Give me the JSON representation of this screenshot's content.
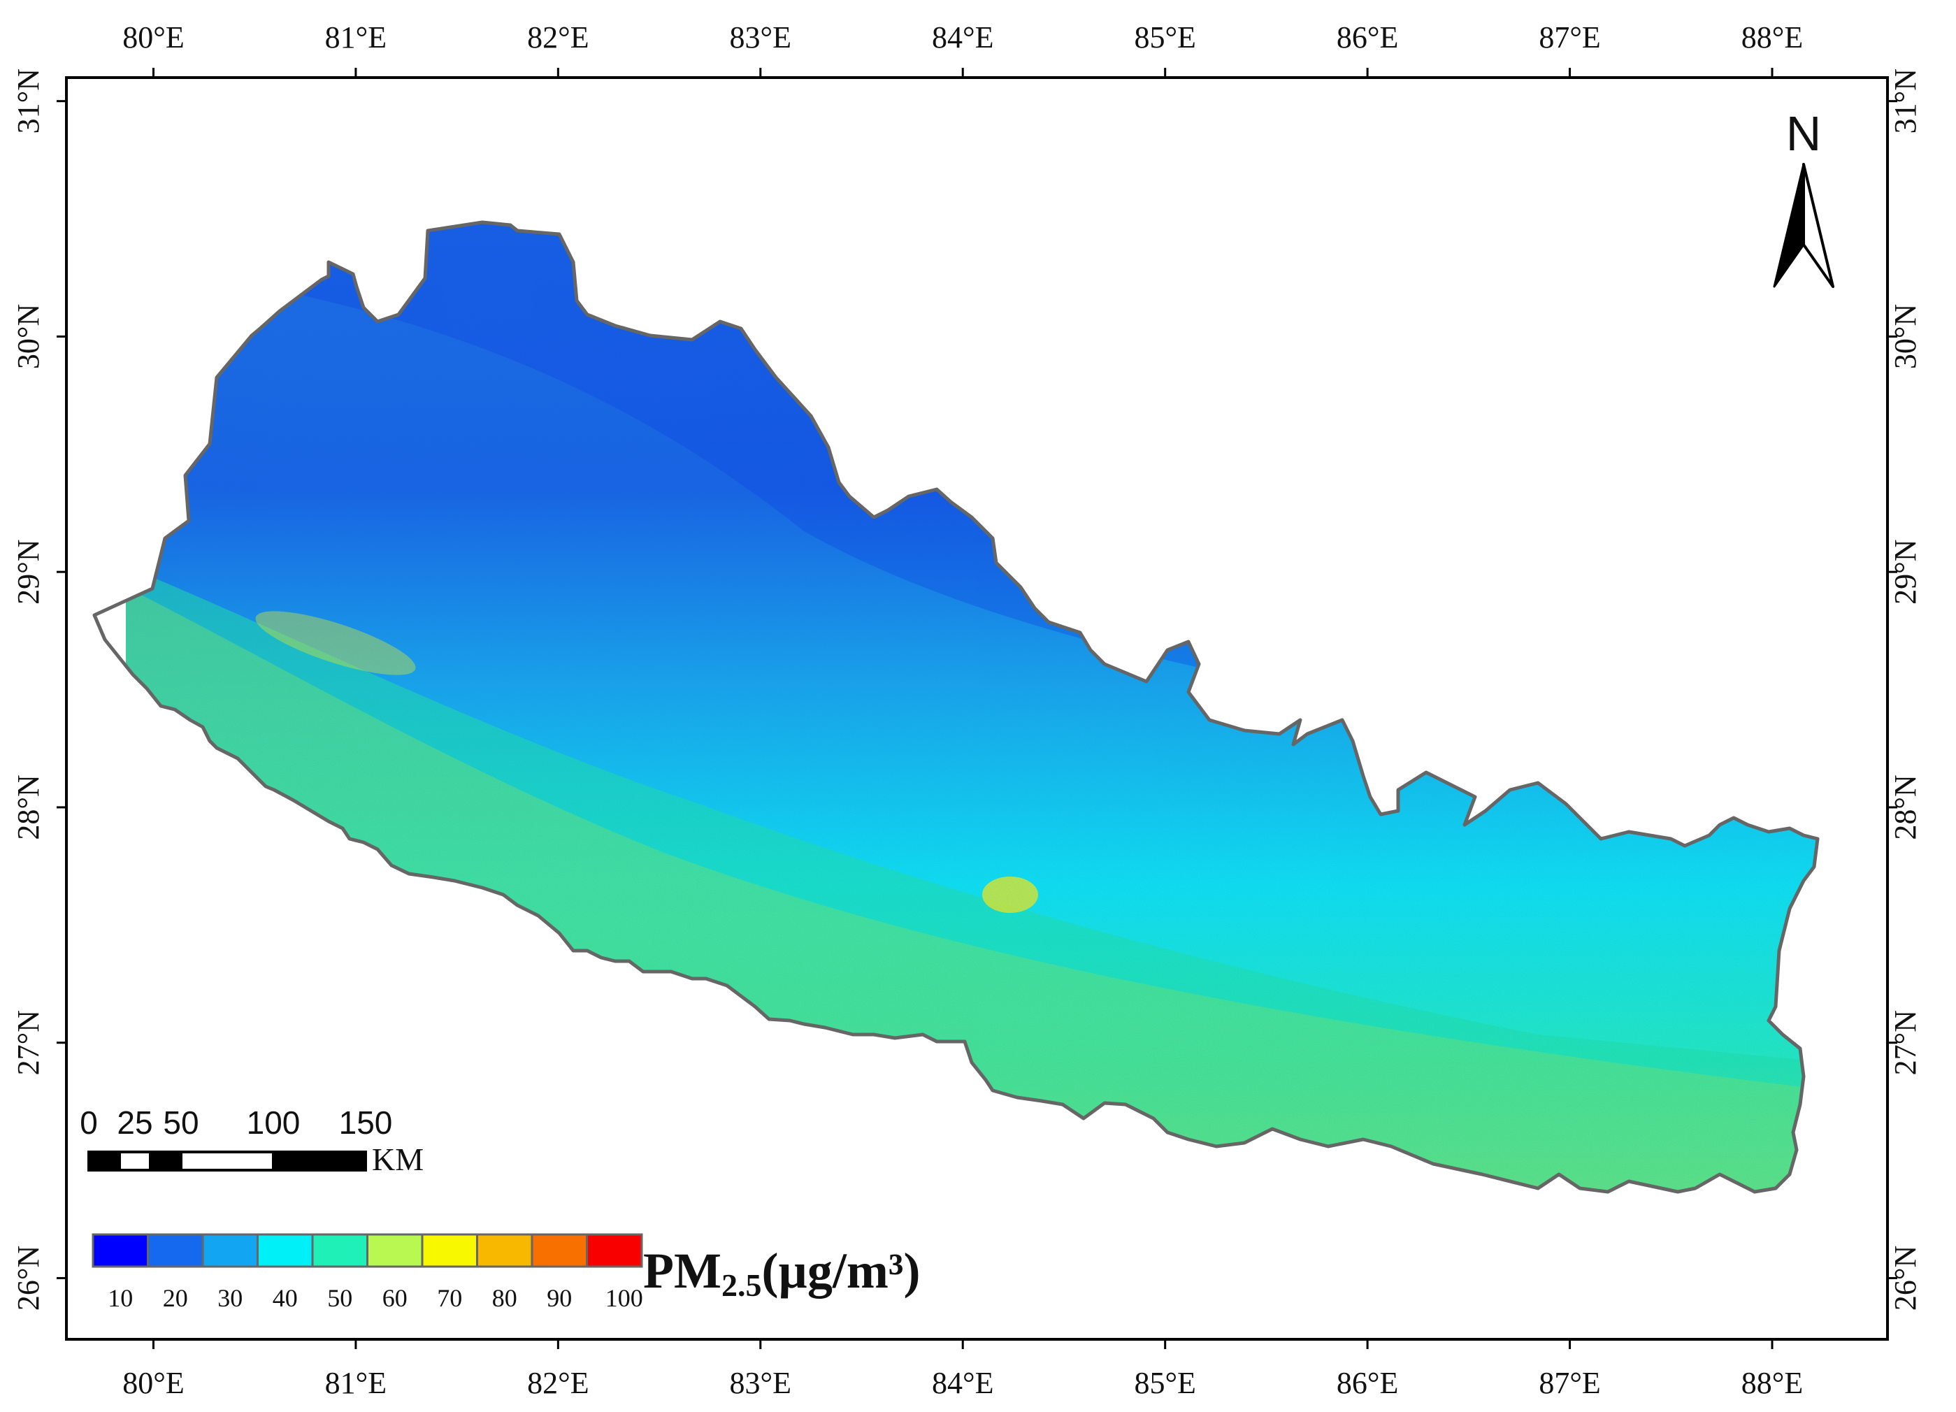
{
  "map": {
    "subject": "PM2.5 concentration",
    "x_axis": {
      "range": [
        79.57,
        88.57
      ],
      "ticks": [
        "80°E",
        "81°E",
        "82°E",
        "83°E",
        "84°E",
        "85°E",
        "86°E",
        "87°E",
        "88°E"
      ],
      "tick_values": [
        80,
        81,
        82,
        83,
        84,
        85,
        86,
        87,
        88
      ]
    },
    "y_axis": {
      "range": [
        25.74,
        31.1
      ],
      "ticks": [
        "31°N",
        "30°N",
        "29°N",
        "28°N",
        "27°N",
        "26°N"
      ],
      "tick_values": [
        31,
        30,
        29,
        28,
        27,
        26
      ]
    },
    "north_arrow": {
      "letter": "N"
    },
    "scale_bar": {
      "labels": [
        "0",
        "25",
        "50",
        "100",
        "150"
      ],
      "unit": "KM"
    },
    "legend": {
      "title_main": "PM",
      "title_sub": "2.5",
      "title_unit": "(µg/m³)",
      "colors": [
        "#0000ff",
        "#1469ef",
        "#12a6f2",
        "#00f0f8",
        "#1ef0b8",
        "#b8f850",
        "#f8f800",
        "#f8b800",
        "#f87000",
        "#f80000"
      ],
      "labels": [
        "10",
        "20",
        "30",
        "40",
        "50",
        "60",
        "70",
        "80",
        "90",
        "100"
      ]
    },
    "colors": {
      "frame": "#000000",
      "border": "#666666",
      "background": "#ffffff"
    }
  }
}
